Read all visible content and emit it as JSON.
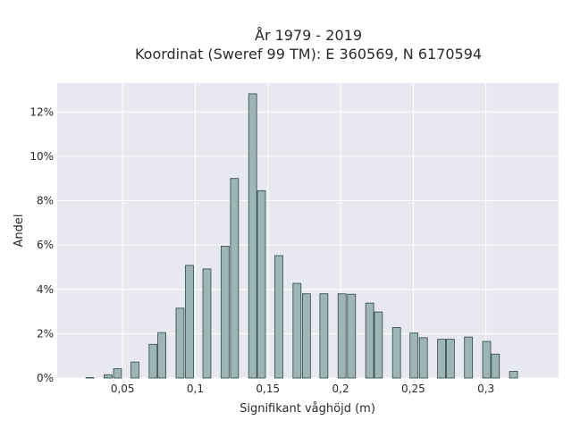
{
  "chart_data": {
    "type": "bar",
    "title_line1": "År 1979 - 2019",
    "title_line2": "Koordinat (Sweref 99 TM): E 360569, N 6170594",
    "xlabel": "Signifikant våghöjd (m)",
    "ylabel": "Andel",
    "xlim": [
      0.005,
      0.35
    ],
    "ylim": [
      0,
      13.3
    ],
    "bin_width": 0.0055,
    "grid": true,
    "colors": {
      "bar_fill": "#9db5b5",
      "bar_edge": "#2f4646",
      "plot_bg": "#e8e8f1",
      "grid": "#ffffff"
    },
    "xticks": [
      {
        "value": 0.05,
        "label": "0,05"
      },
      {
        "value": 0.1,
        "label": "0,1"
      },
      {
        "value": 0.15,
        "label": "0,15"
      },
      {
        "value": 0.2,
        "label": "0,2"
      },
      {
        "value": 0.25,
        "label": "0,25"
      },
      {
        "value": 0.3,
        "label": "0,3"
      }
    ],
    "yticks": [
      {
        "value": 0,
        "label": "0%"
      },
      {
        "value": 2,
        "label": "2%"
      },
      {
        "value": 4,
        "label": "4%"
      },
      {
        "value": 6,
        "label": "6%"
      },
      {
        "value": 8,
        "label": "8%"
      },
      {
        "value": 10,
        "label": "10%"
      },
      {
        "value": 12,
        "label": "12%"
      }
    ],
    "bars": [
      {
        "x": 0.0275,
        "y": 0.02
      },
      {
        "x": 0.04,
        "y": 0.15
      },
      {
        "x": 0.0465,
        "y": 0.42
      },
      {
        "x": 0.0585,
        "y": 0.72
      },
      {
        "x": 0.071,
        "y": 1.52
      },
      {
        "x": 0.077,
        "y": 2.05
      },
      {
        "x": 0.0895,
        "y": 3.15
      },
      {
        "x": 0.096,
        "y": 5.08
      },
      {
        "x": 0.108,
        "y": 4.92
      },
      {
        "x": 0.1205,
        "y": 5.95
      },
      {
        "x": 0.127,
        "y": 9.0
      },
      {
        "x": 0.1395,
        "y": 12.82
      },
      {
        "x": 0.1455,
        "y": 8.45
      },
      {
        "x": 0.1575,
        "y": 5.52
      },
      {
        "x": 0.17,
        "y": 4.27
      },
      {
        "x": 0.1765,
        "y": 3.8
      },
      {
        "x": 0.1885,
        "y": 3.8
      },
      {
        "x": 0.201,
        "y": 3.8
      },
      {
        "x": 0.2075,
        "y": 3.78
      },
      {
        "x": 0.22,
        "y": 3.38
      },
      {
        "x": 0.226,
        "y": 2.98
      },
      {
        "x": 0.2385,
        "y": 2.28
      },
      {
        "x": 0.2505,
        "y": 2.03
      },
      {
        "x": 0.257,
        "y": 1.82
      },
      {
        "x": 0.2695,
        "y": 1.75
      },
      {
        "x": 0.2755,
        "y": 1.75
      },
      {
        "x": 0.288,
        "y": 1.85
      },
      {
        "x": 0.3005,
        "y": 1.65
      },
      {
        "x": 0.3065,
        "y": 1.08
      },
      {
        "x": 0.319,
        "y": 0.3
      }
    ]
  }
}
